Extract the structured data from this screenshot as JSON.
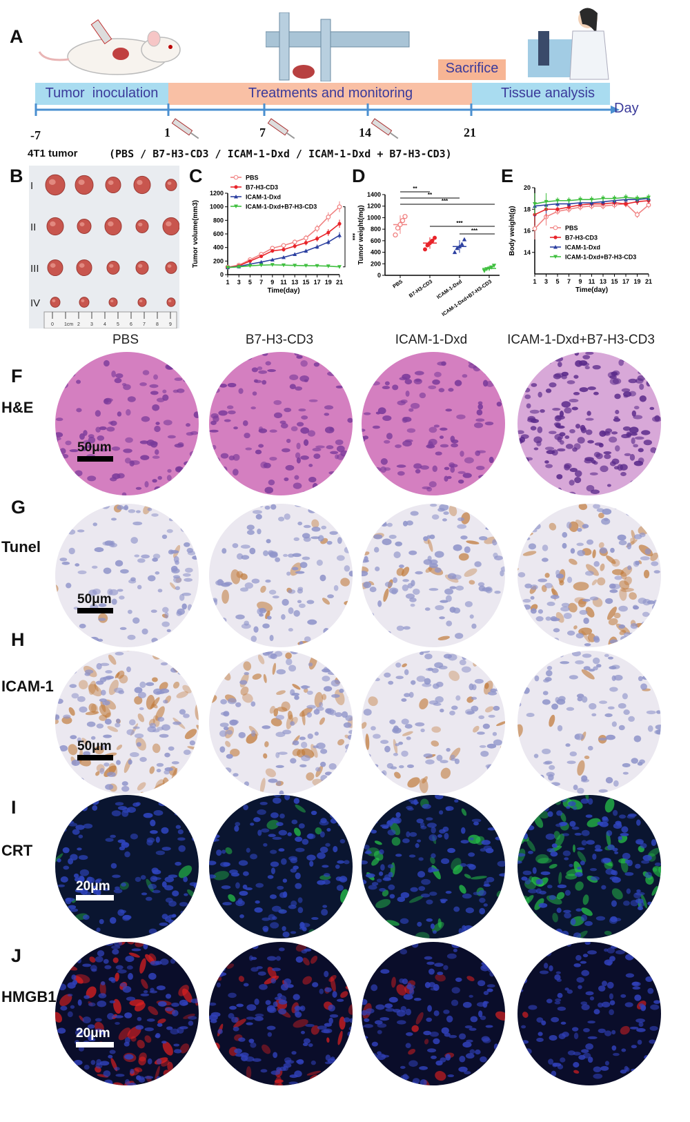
{
  "panel_letters": {
    "A": "A",
    "B": "B",
    "C": "C",
    "D": "D",
    "E": "E",
    "F": "F",
    "G": "G",
    "H": "H",
    "I": "I",
    "J": "J"
  },
  "timeline": {
    "sacrifice": "Sacrifice",
    "phases": [
      "Tumor  inoculation",
      "Treatments and monitoring",
      "Tissue analysis"
    ],
    "day_label": "Day",
    "ticks": [
      "-7",
      "1",
      "7",
      "14",
      "21"
    ],
    "tumor_label": "4T1 tumor",
    "treatment_label": "(PBS / B7-H3-CD3 / ICAM-1-Dxd / ICAM-1-Dxd + B7-H3-CD3)"
  },
  "panelB": {
    "rows": [
      "I",
      "II",
      "III",
      "IV"
    ],
    "ruler_labels": [
      "0",
      "1cm",
      "2",
      "3",
      "4",
      "5",
      "6",
      "7",
      "8",
      "9"
    ]
  },
  "colors": {
    "PBS": "#f08080",
    "B7-H3-CD3": "#e8242a",
    "ICAM-1-Dxd": "#2b3fa0",
    "ICAM-1-Dxd+B7-H3-CD3": "#3fbf3f"
  },
  "chart_data": [
    {
      "type": "line",
      "title": "C",
      "xlabel": "Time(day)",
      "ylabel": "Tumor volume(mm3)",
      "x": [
        1,
        3,
        5,
        7,
        9,
        11,
        13,
        15,
        17,
        19,
        21
      ],
      "ylim": [
        0,
        1200
      ],
      "yticks": [
        0,
        200,
        400,
        600,
        800,
        1000,
        1200
      ],
      "significance": "***",
      "series": [
        {
          "name": "PBS",
          "values": [
            110,
            140,
            220,
            300,
            390,
            430,
            480,
            540,
            680,
            850,
            1000
          ]
        },
        {
          "name": "B7-H3-CD3",
          "values": [
            105,
            130,
            200,
            270,
            350,
            370,
            420,
            470,
            530,
            620,
            750
          ]
        },
        {
          "name": "ICAM-1-Dxd",
          "values": [
            105,
            120,
            155,
            185,
            220,
            255,
            300,
            350,
            410,
            480,
            580
          ]
        },
        {
          "name": "ICAM-1-Dxd+B7-H3-CD3",
          "values": [
            105,
            115,
            130,
            140,
            145,
            140,
            135,
            132,
            130,
            125,
            115
          ]
        }
      ]
    },
    {
      "type": "scatter",
      "title": "D",
      "ylabel": "Tumor weight(mg)",
      "categories": [
        "PBS",
        "B7-H3-CD3",
        "ICAM-1-Dxd",
        "ICAM-1-Dxd+B7-H3-CD3"
      ],
      "ylim": [
        0,
        1400
      ],
      "yticks": [
        0,
        200,
        400,
        600,
        800,
        1000,
        1200,
        1400
      ],
      "means": [
        880,
        560,
        500,
        120
      ],
      "points": [
        [
          700,
          820,
          880,
          950,
          1020
        ],
        [
          450,
          520,
          560,
          600,
          650
        ],
        [
          400,
          470,
          500,
          540,
          620
        ],
        [
          80,
          110,
          120,
          140,
          170
        ]
      ],
      "comparisons": [
        {
          "groups": [
            0,
            1
          ],
          "label": "**"
        },
        {
          "groups": [
            0,
            2
          ],
          "label": "**"
        },
        {
          "groups": [
            0,
            3
          ],
          "label": "***"
        },
        {
          "groups": [
            1,
            3
          ],
          "label": "***"
        },
        {
          "groups": [
            2,
            3
          ],
          "label": "***"
        }
      ]
    },
    {
      "type": "line",
      "title": "E",
      "xlabel": "Time(day)",
      "ylabel": "Body weight(g)",
      "x": [
        1,
        3,
        5,
        7,
        9,
        11,
        13,
        15,
        17,
        19,
        21
      ],
      "ylim": [
        12,
        20
      ],
      "yticks": [
        14,
        16,
        18,
        20
      ],
      "series": [
        {
          "name": "PBS",
          "values": [
            16.2,
            17.3,
            17.8,
            18.0,
            18.2,
            18.3,
            18.3,
            18.4,
            18.5,
            17.5,
            18.4
          ]
        },
        {
          "name": "B7-H3-CD3",
          "values": [
            17.5,
            18.0,
            18.0,
            18.2,
            18.4,
            18.5,
            18.5,
            18.6,
            18.5,
            18.7,
            18.8
          ]
        },
        {
          "name": "ICAM-1-Dxd",
          "values": [
            18.3,
            18.4,
            18.5,
            18.5,
            18.6,
            18.6,
            18.7,
            18.8,
            18.9,
            18.9,
            19.0
          ]
        },
        {
          "name": "ICAM-1-Dxd+B7-H3-CD3",
          "values": [
            18.5,
            18.7,
            18.8,
            18.8,
            18.9,
            18.9,
            19.0,
            19.0,
            19.1,
            19.0,
            19.1
          ]
        }
      ]
    }
  ],
  "micrographs": {
    "columns": [
      "PBS",
      "B7-H3-CD3",
      "ICAM-1-Dxd",
      "ICAM-1-Dxd+B7-H3-CD3"
    ],
    "rows": [
      {
        "letter": "F",
        "label": "H&E",
        "scale": "50μm",
        "kind": "he"
      },
      {
        "letter": "G",
        "label": "Tunel",
        "scale": "50μm",
        "kind": "ihc"
      },
      {
        "letter": "H",
        "label": "ICAM-1",
        "scale": "50μm",
        "kind": "ihc"
      },
      {
        "letter": "I",
        "label": "CRT",
        "scale": "20μm",
        "kind": "crt"
      },
      {
        "letter": "J",
        "label": "HMGB1",
        "scale": "20μm",
        "kind": "hmgb1"
      }
    ],
    "intensity": {
      "tunel": [
        0.1,
        0.2,
        0.3,
        0.8
      ],
      "icam1": [
        0.85,
        0.7,
        0.3,
        0.1
      ],
      "crt": [
        0.1,
        0.15,
        0.4,
        0.85
      ],
      "hmgb1": [
        0.85,
        0.5,
        0.2,
        0.05
      ]
    }
  }
}
